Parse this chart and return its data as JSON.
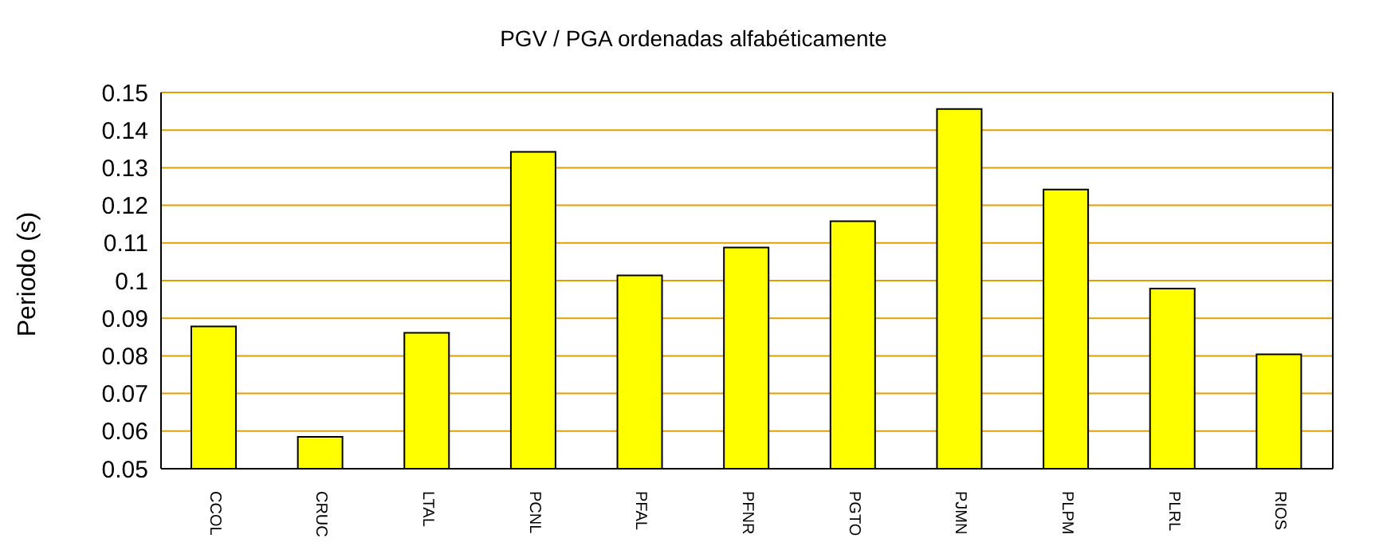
{
  "chart_data": {
    "type": "bar",
    "title": "PGV / PGA ordenadas alfabéticamente",
    "ylabel": "Periodo (s)",
    "categories": [
      "CCOL",
      "CRUC",
      "LTAL",
      "PCNL",
      "PFAL",
      "PFNR",
      "PGTO",
      "PJMN",
      "PLPM",
      "PLRL",
      "RIOS"
    ],
    "values": [
      0.0878,
      0.0585,
      0.0861,
      0.1342,
      0.1014,
      0.1088,
      0.1158,
      0.1456,
      0.1242,
      0.0979,
      0.0804
    ],
    "color": "#ffff00",
    "ylim": [
      0.05,
      0.15
    ],
    "yticks": [
      0.05,
      0.06,
      0.07,
      0.08,
      0.09,
      0.1,
      0.11,
      0.12,
      0.13,
      0.14,
      0.15
    ],
    "grid": "y",
    "legend": false
  }
}
